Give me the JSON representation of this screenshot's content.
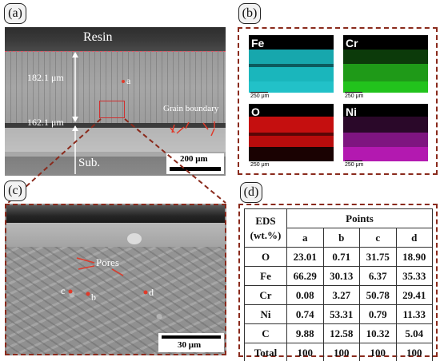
{
  "panels": {
    "a": {
      "tag": "(a)",
      "resin_label": "Resin",
      "top_thickness": "182.1 μm",
      "bottom_thickness": "162.1 μm",
      "point_label": "a",
      "boundary_label": "Grain boundary",
      "substrate_label": "Sub.",
      "scale_label": "200 μm"
    },
    "b": {
      "tag": "(b)",
      "maps": [
        {
          "element": "Fe",
          "color": "#19b7bd",
          "scale_label": "250 μm"
        },
        {
          "element": "Cr",
          "color": "#22c31c",
          "scale_label": "250 μm"
        },
        {
          "element": "O",
          "color": "#d21010",
          "scale_label": "250 μm"
        },
        {
          "element": "Ni",
          "color": "#b319b0",
          "scale_label": "250 μm"
        }
      ]
    },
    "c": {
      "tag": "(c)",
      "pores_label": "Pores",
      "point_b": "b",
      "point_c": "c",
      "point_d": "d",
      "scale_label": "30 μm"
    },
    "d": {
      "tag": "(d)",
      "header_left_1": "EDS",
      "header_left_2": "(wt.%)",
      "header_points": "Points",
      "columns": [
        "a",
        "b",
        "c",
        "d"
      ],
      "rows": [
        {
          "label": "O",
          "values": [
            "23.01",
            "0.71",
            "31.75",
            "18.90"
          ]
        },
        {
          "label": "Fe",
          "values": [
            "66.29",
            "30.13",
            "6.37",
            "35.33"
          ]
        },
        {
          "label": "Cr",
          "values": [
            "0.08",
            "3.27",
            "50.78",
            "29.41"
          ]
        },
        {
          "label": "Ni",
          "values": [
            "0.74",
            "53.31",
            "0.79",
            "11.33"
          ]
        },
        {
          "label": "C",
          "values": [
            "9.88",
            "12.58",
            "10.32",
            "5.04"
          ]
        },
        {
          "label": "Total",
          "values": [
            "100",
            "100",
            "100",
            "100"
          ]
        }
      ]
    }
  }
}
